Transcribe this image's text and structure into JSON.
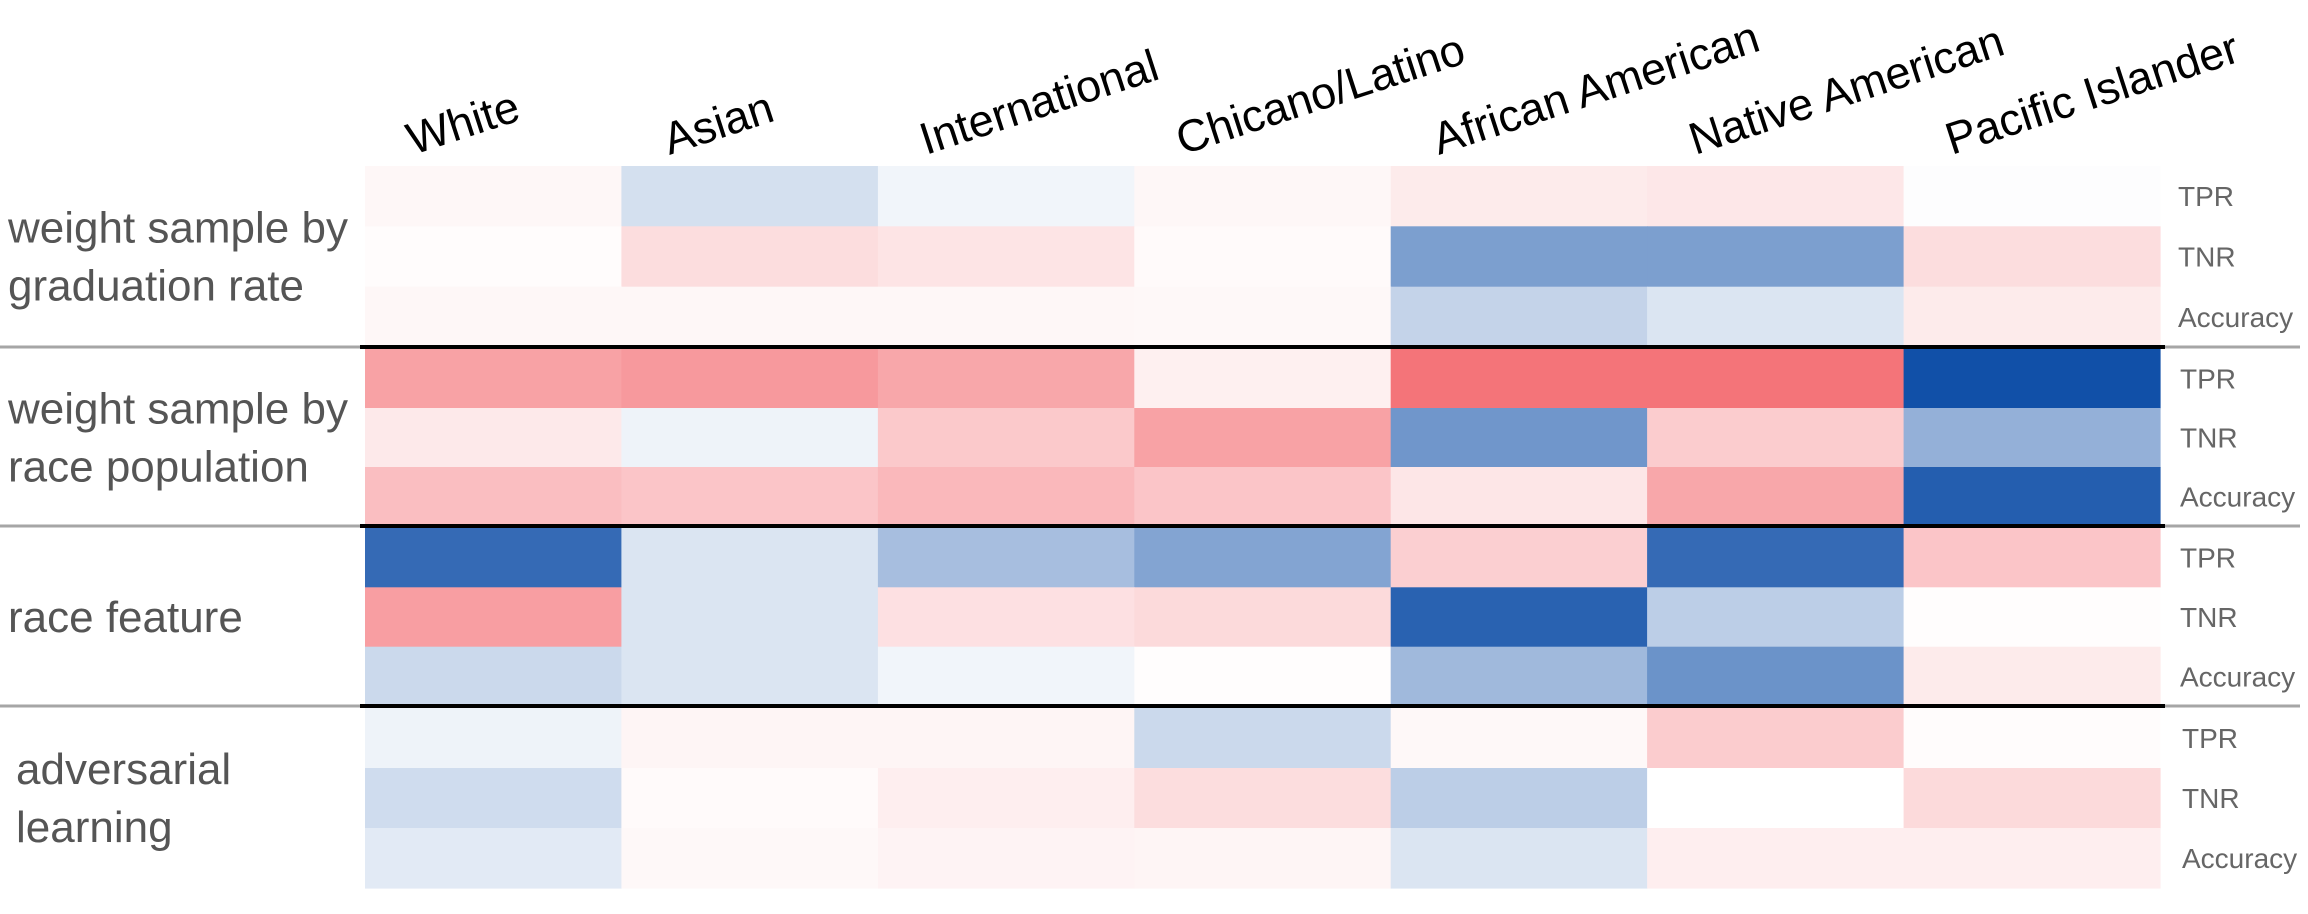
{
  "chart_data": {
    "type": "heatmap",
    "columns": [
      "White",
      "Asian",
      "International",
      "Chicano/Latino",
      "African American",
      "Native American",
      "Pacific Islander"
    ],
    "groups": [
      {
        "label_lines": [
          "weight sample by",
          "graduation rate"
        ],
        "rows": [
          {
            "metric": "TPR",
            "values": [
              0.05,
              -0.18,
              -0.06,
              0.05,
              0.12,
              0.14,
              -0.01
            ]
          },
          {
            "metric": "TNR",
            "values": [
              0.02,
              0.2,
              0.16,
              0.03,
              -0.55,
              -0.55,
              0.2
            ]
          },
          {
            "metric": "Accuracy",
            "values": [
              0.05,
              0.05,
              0.05,
              0.04,
              -0.25,
              -0.15,
              0.12
            ]
          }
        ]
      },
      {
        "label_lines": [
          "weight sample by",
          "race population"
        ],
        "rows": [
          {
            "metric": "TPR",
            "values": [
              0.55,
              0.6,
              0.52,
              0.09,
              0.82,
              0.82,
              -1.0
            ]
          },
          {
            "metric": "TNR",
            "values": [
              0.13,
              -0.07,
              0.32,
              0.55,
              -0.6,
              0.3,
              -0.45
            ]
          },
          {
            "metric": "Accuracy",
            "values": [
              0.38,
              0.34,
              0.42,
              0.34,
              0.15,
              0.52,
              -0.92
            ]
          }
        ]
      },
      {
        "label_lines": [
          "race feature"
        ],
        "rows": [
          {
            "metric": "TPR",
            "values": [
              -0.85,
              -0.15,
              -0.37,
              -0.52,
              0.28,
              -0.85,
              0.34
            ]
          },
          {
            "metric": "TNR",
            "values": [
              0.57,
              -0.15,
              0.18,
              0.22,
              -0.9,
              -0.28,
              0.01
            ]
          },
          {
            "metric": "Accuracy",
            "values": [
              -0.22,
              -0.15,
              -0.06,
              0.01,
              -0.4,
              -0.62,
              0.12
            ]
          }
        ]
      },
      {
        "label_lines": [
          "adversarial",
          "learning"
        ],
        "rows": [
          {
            "metric": "TPR",
            "values": [
              -0.07,
              0.06,
              0.06,
              -0.22,
              0.04,
              0.3,
              0.02
            ]
          },
          {
            "metric": "TNR",
            "values": [
              -0.2,
              0.03,
              0.1,
              0.2,
              -0.28,
              0.0,
              0.22
            ]
          },
          {
            "metric": "Accuracy",
            "values": [
              -0.12,
              0.04,
              0.07,
              0.06,
              -0.15,
              0.1,
              0.1
            ]
          }
        ]
      }
    ],
    "value_range": [
      -1,
      1
    ],
    "colors": {
      "negative": "#1150a8",
      "neutral": "#ffffff",
      "positive": "#f2555c"
    },
    "separator_colors": {
      "major": "#000000",
      "minor": "#a6a6a6"
    }
  }
}
